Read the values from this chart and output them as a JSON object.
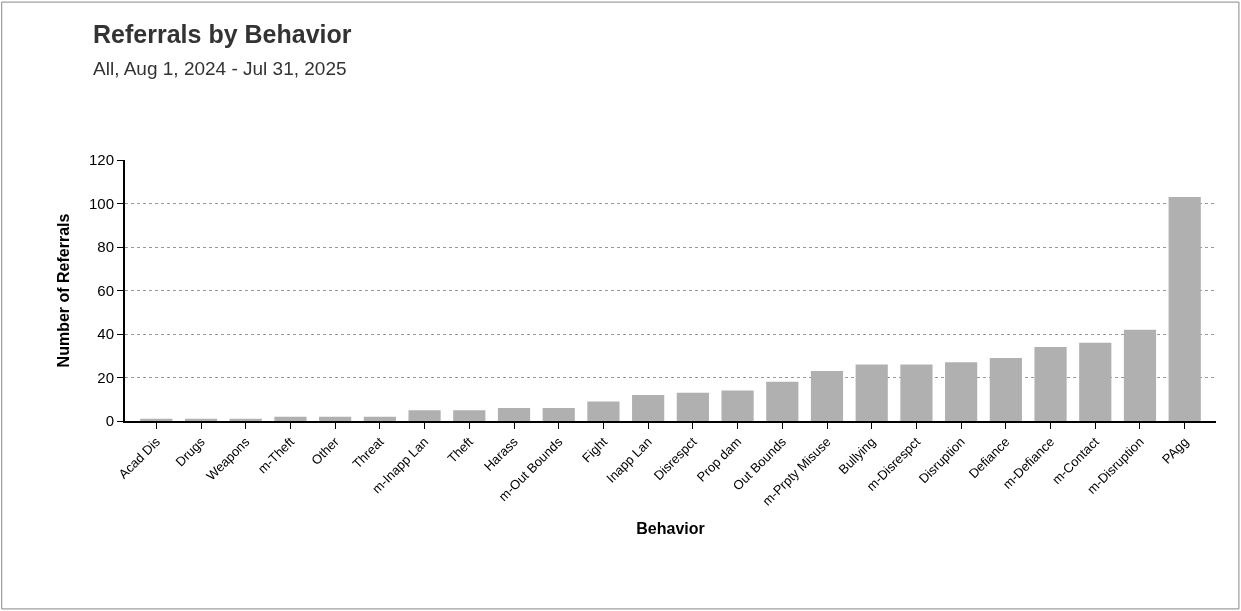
{
  "chart_data": {
    "type": "bar",
    "title": "Referrals by Behavior",
    "subtitle": "All, Aug 1, 2024 - Jul 31, 2025",
    "xlabel": "Behavior",
    "ylabel": "Number of Referrals",
    "categories": [
      "Acad Dis",
      "Drugs",
      "Weapons",
      "m-Theft",
      "Other",
      "Threat",
      "m-Inapp Lan",
      "Theft",
      "Harass",
      "m-Out Bounds",
      "Fight",
      "Inapp Lan",
      "Disrespct",
      "Prop dam",
      "Out Bounds",
      "m-Prpty Misuse",
      "Bullying",
      "m-Disrespct",
      "Disruption",
      "Defiance",
      "m-Defiance",
      "m-Contact",
      "m-Disruption",
      "PAgg"
    ],
    "values": [
      1,
      1,
      1,
      2,
      2,
      2,
      5,
      5,
      6,
      6,
      9,
      12,
      13,
      14,
      18,
      23,
      26,
      26,
      27,
      29,
      34,
      36,
      42,
      103
    ],
    "color": "#b0b0b0",
    "ylim": [
      0,
      120
    ],
    "yticks": [
      0,
      20,
      40,
      60,
      80,
      100,
      120
    ],
    "grid": "y"
  }
}
